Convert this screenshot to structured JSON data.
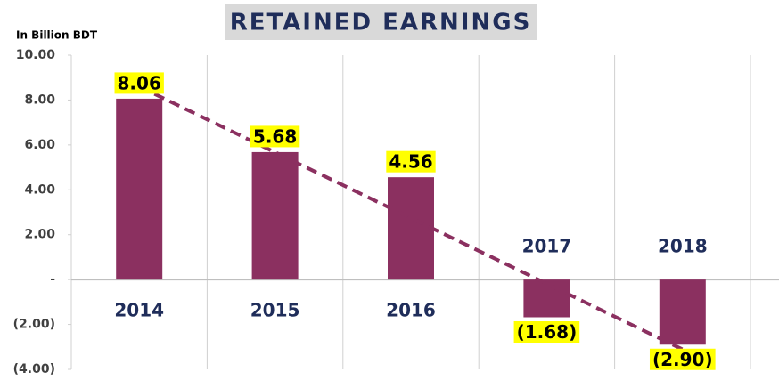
{
  "chart_data": {
    "type": "bar",
    "title": "RETAINED EARNINGS",
    "y_axis_label": "In Billion BDT",
    "categories": [
      "2014",
      "2015",
      "2016",
      "2017",
      "2018"
    ],
    "values": [
      8.06,
      5.68,
      4.56,
      -1.68,
      -2.9
    ],
    "value_labels": [
      "8.06",
      "5.68",
      "4.56",
      "(1.68)",
      "(2.90)"
    ],
    "color": "#8b3060",
    "trendline": "linear",
    "trendline_color": "#8b3060",
    "ylim": [
      -4,
      10
    ],
    "yticks": [
      {
        "value": -4,
        "label": "(4.00)"
      },
      {
        "value": -2,
        "label": "(2.00)"
      },
      {
        "value": 0,
        "label": "-"
      },
      {
        "value": 2,
        "label": "2.00"
      },
      {
        "value": 4,
        "label": "4.00"
      },
      {
        "value": 6,
        "label": "6.00"
      },
      {
        "value": 8,
        "label": "8.00"
      },
      {
        "value": 10,
        "label": "10.00"
      }
    ],
    "grid": "vertical"
  }
}
